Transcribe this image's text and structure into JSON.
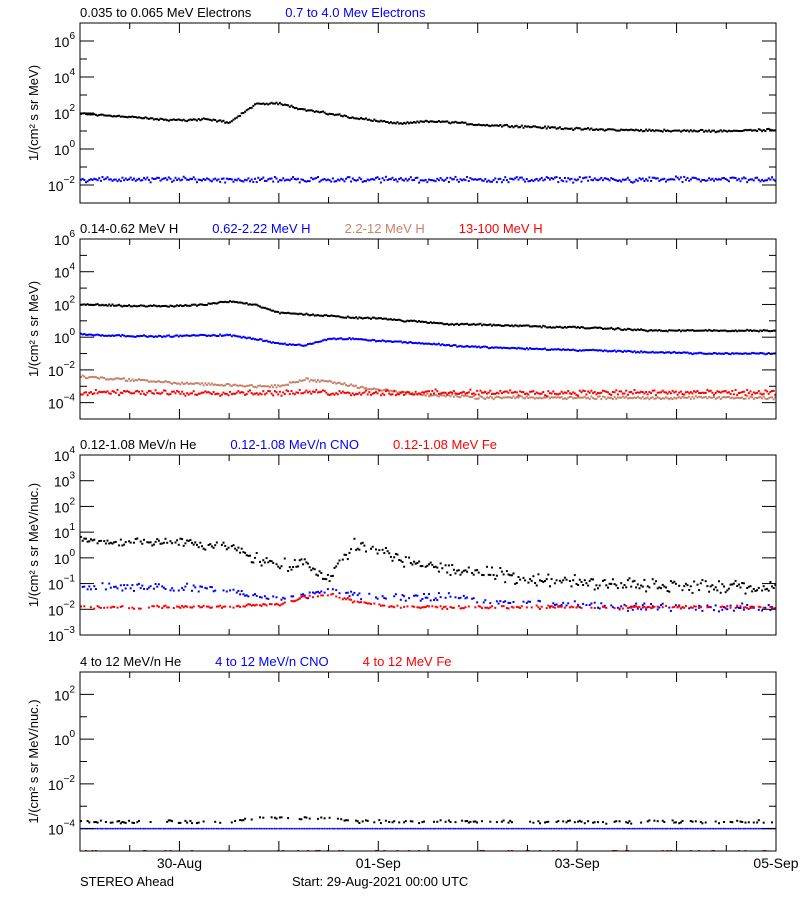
{
  "chart_data": [
    {
      "type": "scatter",
      "labels": [
        {
          "text": "0.035 to 0.065 MeV Electrons",
          "color": "#000000"
        },
        {
          "text": "0.7 to 4.0 Mev Electrons",
          "color": "#0000ff"
        }
      ],
      "ylabel": "1/(cm² s sr MeV)",
      "yscale": "log",
      "ylim": [
        0.001,
        10000000.0
      ],
      "yticks_exp": [
        -2,
        0,
        2,
        4,
        6
      ],
      "series": [
        {
          "name": "0.035 to 0.065 MeV Electrons",
          "color": "#000000",
          "values": [
            90,
            75,
            60,
            45,
            40,
            45,
            30,
            300,
            350,
            150,
            90,
            55,
            35,
            25,
            35,
            30,
            22,
            20,
            17,
            15,
            13,
            12,
            11,
            11,
            10,
            10,
            10,
            11,
            12
          ]
        },
        {
          "name": "0.7 to 4.0 Mev Electrons",
          "color": "#0000ff",
          "values": [
            0.02,
            0.02,
            0.02,
            0.02,
            0.02,
            0.02,
            0.02,
            0.02,
            0.02,
            0.02,
            0.02,
            0.02,
            0.02,
            0.02,
            0.02,
            0.02,
            0.02,
            0.02,
            0.02,
            0.02,
            0.02,
            0.02,
            0.02,
            0.02,
            0.02,
            0.02,
            0.02,
            0.02,
            0.02
          ]
        }
      ]
    },
    {
      "type": "scatter",
      "labels": [
        {
          "text": "0.14-0.62 MeV H",
          "color": "#000000"
        },
        {
          "text": "0.62-2.22 MeV H",
          "color": "#0000ff"
        },
        {
          "text": "2.2-12 MeV H",
          "color": "#c8826a"
        },
        {
          "text": "13-100 MeV H",
          "color": "#ff0000"
        }
      ],
      "ylabel": "1/(cm² s sr MeV)",
      "yscale": "log",
      "ylim": [
        1e-05,
        1000000.0
      ],
      "yticks_exp": [
        -4,
        -2,
        0,
        2,
        4,
        6
      ],
      "series": [
        {
          "name": "0.14-0.62 MeV H",
          "color": "#000000",
          "values": [
            100,
            90,
            80,
            80,
            80,
            100,
            150,
            100,
            30,
            25,
            20,
            15,
            15,
            10,
            8,
            6,
            6,
            5,
            5,
            4,
            4,
            3.5,
            3,
            2.5,
            2.5,
            2.5,
            2.5,
            2.5,
            2.5
          ]
        },
        {
          "name": "0.62-2.22 MeV H",
          "color": "#0000ff",
          "values": [
            1.5,
            1.3,
            1.2,
            1.1,
            1.2,
            1.3,
            1.3,
            0.8,
            0.4,
            0.3,
            0.8,
            0.8,
            0.6,
            0.5,
            0.4,
            0.3,
            0.25,
            0.22,
            0.2,
            0.18,
            0.16,
            0.15,
            0.13,
            0.12,
            0.11,
            0.1,
            0.1,
            0.1,
            0.1
          ]
        },
        {
          "name": "2.2-12 MeV H",
          "color": "#c8826a",
          "values": [
            0.004,
            0.003,
            0.0025,
            0.002,
            0.0015,
            0.0013,
            0.0012,
            0.001,
            0.001,
            0.0025,
            0.002,
            0.001,
            0.0006,
            0.0004,
            0.0003,
            0.00025,
            0.0002,
            0.0002,
            0.0002,
            0.0002,
            0.0002,
            0.0002,
            0.0002,
            0.0002,
            0.0002,
            0.0002,
            0.0002,
            0.0002,
            0.0002
          ]
        },
        {
          "name": "13-100 MeV H",
          "color": "#ff0000",
          "values": [
            0.0004,
            0.0004,
            0.0004,
            0.0004,
            0.0004,
            0.0004,
            0.0004,
            0.0004,
            0.0004,
            0.0004,
            0.0004,
            0.0004,
            0.0004,
            0.0004,
            0.0004,
            0.0004,
            0.0004,
            0.0004,
            0.0004,
            0.0004,
            0.0004,
            0.0004,
            0.0004,
            0.0004,
            0.0004,
            0.0004,
            0.0004,
            0.0004,
            0.0004
          ]
        }
      ]
    },
    {
      "type": "scatter",
      "labels": [
        {
          "text": "0.12-1.08 MeV/n He",
          "color": "#000000"
        },
        {
          "text": "0.12-1.08 MeV/n CNO",
          "color": "#0000ff"
        },
        {
          "text": "0.12-1.08 MeV Fe",
          "color": "#ff0000"
        }
      ],
      "ylabel": "1/(cm² s sr MeV/nuc.)",
      "yscale": "log",
      "ylim": [
        0.001,
        10000.0
      ],
      "yticks_exp": [
        -3,
        -2,
        -1,
        0,
        1,
        2,
        3,
        4
      ],
      "series": [
        {
          "name": "0.12-1.08 MeV/n He",
          "color": "#000000",
          "values": [
            5,
            4,
            4,
            4,
            4,
            3,
            3,
            1,
            0.5,
            0.6,
            0.15,
            3,
            2,
            0.8,
            0.5,
            0.35,
            0.25,
            0.2,
            0.15,
            0.13,
            0.12,
            0.1,
            0.1,
            0.09,
            0.08,
            0.08,
            0.07,
            0.07,
            0.07
          ]
        },
        {
          "name": "0.12-1.08 MeV/n CNO",
          "color": "#0000ff",
          "values": [
            0.07,
            0.07,
            0.07,
            0.07,
            0.07,
            0.06,
            0.05,
            0.03,
            0.03,
            0.03,
            0.06,
            0.04,
            0.03,
            0.03,
            0.03,
            0.03,
            0.02,
            0.02,
            0.02,
            0.015,
            0.015,
            0.015,
            0.012,
            0.012,
            0.012,
            0.012,
            0.012,
            0.012,
            0.012
          ]
        },
        {
          "name": "0.12-1.08 MeV Fe",
          "color": "#ff0000",
          "values": [
            0.012,
            0.012,
            0.012,
            0.012,
            0.012,
            0.012,
            0.012,
            0.015,
            0.015,
            0.03,
            0.04,
            0.02,
            0.015,
            0.012,
            0.012,
            0.012,
            0.012,
            0.012,
            0.012,
            0.012,
            0.012,
            0.012,
            0.012,
            0.012,
            0.012,
            0.012,
            0.012,
            0.012,
            0.012
          ]
        }
      ]
    },
    {
      "type": "scatter",
      "labels": [
        {
          "text": "4 to 12 MeV/n He",
          "color": "#000000"
        },
        {
          "text": "4 to 12 MeV/n CNO",
          "color": "#0000ff"
        },
        {
          "text": "4 to 12 MeV Fe",
          "color": "#ff0000"
        }
      ],
      "ylabel": "1/(cm² s sr MeV/nuc.)",
      "yscale": "log",
      "ylim": [
        1e-05,
        1000.0
      ],
      "yticks_exp": [
        -4,
        -2,
        0,
        2
      ],
      "series": [
        {
          "name": "4 to 12 MeV/n He",
          "color": "#000000",
          "values": [
            0.0002,
            0.0002,
            0.0002,
            0.0002,
            0.0002,
            0.0002,
            0.0002,
            0.0003,
            0.0003,
            0.0003,
            0.0003,
            0.0002,
            0.0002,
            0.0002,
            0.0002,
            0.0002,
            0.0002,
            0.0002,
            0.0002,
            0.0002,
            0.0002,
            0.0002,
            0.0002,
            0.0002,
            0.0002,
            0.0002,
            0.0002,
            0.0002,
            0.0002
          ]
        },
        {
          "name": "4 to 12 MeV/n CNO",
          "color": "#0000ff",
          "values": [
            0.0001,
            0.0001,
            0.0001,
            0.0001,
            0.0001,
            0.0001,
            0.0001,
            0.0001,
            0.0001,
            0.0001,
            0.0001,
            0.0001,
            0.0001,
            0.0001,
            0.0001,
            0.0001,
            0.0001,
            0.0001,
            0.0001,
            0.0001,
            0.0001,
            0.0001,
            0.0001,
            0.0001,
            0.0001,
            0.0001,
            0.0001,
            0.0001,
            0.0001
          ]
        },
        {
          "name": "4 to 12 MeV Fe",
          "color": "#ff0000",
          "values": [
            1e-05,
            1e-05,
            1e-05,
            1e-05,
            1e-05,
            1e-05,
            1e-05,
            1e-05,
            1e-05,
            1e-05,
            1e-05,
            1e-05,
            1e-05,
            1e-05,
            1e-05,
            1e-05,
            1e-05,
            1e-05,
            1e-05,
            1e-05,
            1e-05,
            1e-05,
            1e-05,
            1e-05,
            1e-05,
            1e-05,
            1e-05,
            1e-05,
            1e-05
          ]
        }
      ]
    }
  ],
  "x": [
    "2021-08-29T00:00",
    "2021-08-29T06:00",
    "2021-08-29T12:00",
    "2021-08-29T18:00",
    "2021-08-30T00:00",
    "2021-08-30T06:00",
    "2021-08-30T12:00",
    "2021-08-30T18:00",
    "2021-08-31T00:00",
    "2021-08-31T06:00",
    "2021-08-31T12:00",
    "2021-08-31T18:00",
    "2021-09-01T00:00",
    "2021-09-01T06:00",
    "2021-09-01T12:00",
    "2021-09-01T18:00",
    "2021-09-02T00:00",
    "2021-09-02T06:00",
    "2021-09-02T12:00",
    "2021-09-02T18:00",
    "2021-09-03T00:00",
    "2021-09-03T06:00",
    "2021-09-03T12:00",
    "2021-09-03T18:00",
    "2021-09-04T00:00",
    "2021-09-04T06:00",
    "2021-09-04T12:00",
    "2021-09-04T18:00",
    "2021-09-05T00:00"
  ],
  "xaxis": {
    "xlim": [
      "2021-08-29T00:00",
      "2021-09-05T00:00"
    ],
    "tick_labels": [
      {
        "text": "30-Aug",
        "time": "2021-08-30T00:00"
      },
      {
        "text": "01-Sep",
        "time": "2021-09-01T00:00"
      },
      {
        "text": "03-Sep",
        "time": "2021-09-03T00:00"
      },
      {
        "text": "05-Sep",
        "time": "2021-09-05T00:00"
      }
    ]
  },
  "footer": {
    "spacecraft": "STEREO Ahead",
    "start": "Start: 29-Aug-2021 00:00 UTC"
  }
}
